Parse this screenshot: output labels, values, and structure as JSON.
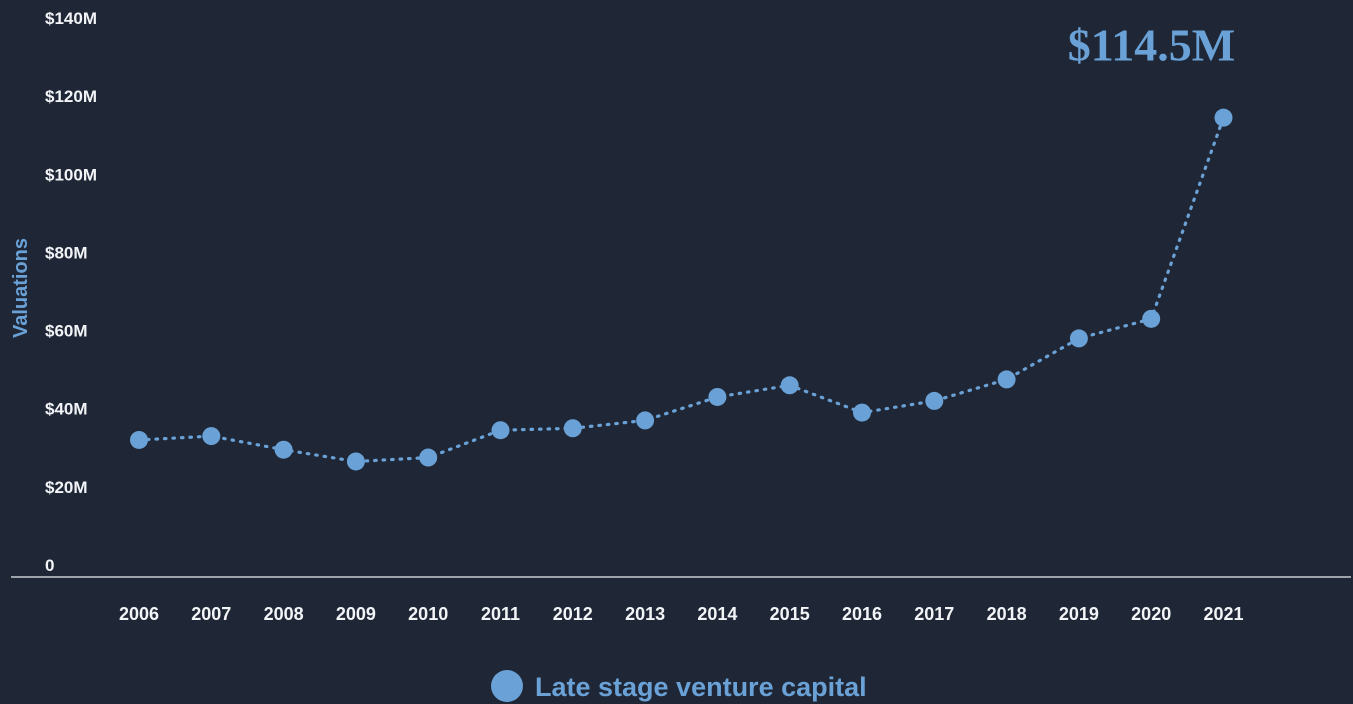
{
  "chart_data": {
    "type": "line",
    "title": "",
    "xlabel": "",
    "ylabel": "Valuations",
    "x": [
      "2006",
      "2007",
      "2008",
      "2009",
      "2010",
      "2011",
      "2012",
      "2013",
      "2014",
      "2015",
      "2016",
      "2017",
      "2018",
      "2019",
      "2020",
      "2021"
    ],
    "series": [
      {
        "name": "Late stage venture capital",
        "values": [
          32,
          33,
          29.5,
          26.5,
          27.5,
          34.5,
          35,
          37,
          43,
          46,
          39,
          42,
          47.5,
          58,
          63,
          114.5
        ]
      }
    ],
    "ylim": [
      0,
      140
    ],
    "yticks": [
      {
        "value": 0,
        "label": "0"
      },
      {
        "value": 20,
        "label": "$20M"
      },
      {
        "value": 40,
        "label": "$40M"
      },
      {
        "value": 60,
        "label": "$60M"
      },
      {
        "value": 80,
        "label": "$80M"
      },
      {
        "value": 100,
        "label": "$100M"
      },
      {
        "value": 120,
        "label": "$120M"
      },
      {
        "value": 140,
        "label": "$140M"
      }
    ],
    "annotation": {
      "label": "$114.5M",
      "x": "2021",
      "value": 114.5
    },
    "grid": false,
    "legend_position": "bottom-center",
    "line_style": "dotted",
    "colors": {
      "background": "#1f2736",
      "series": "#6aa1d6",
      "text": "#f2f4f7",
      "axis": "#c9ccd2"
    }
  }
}
